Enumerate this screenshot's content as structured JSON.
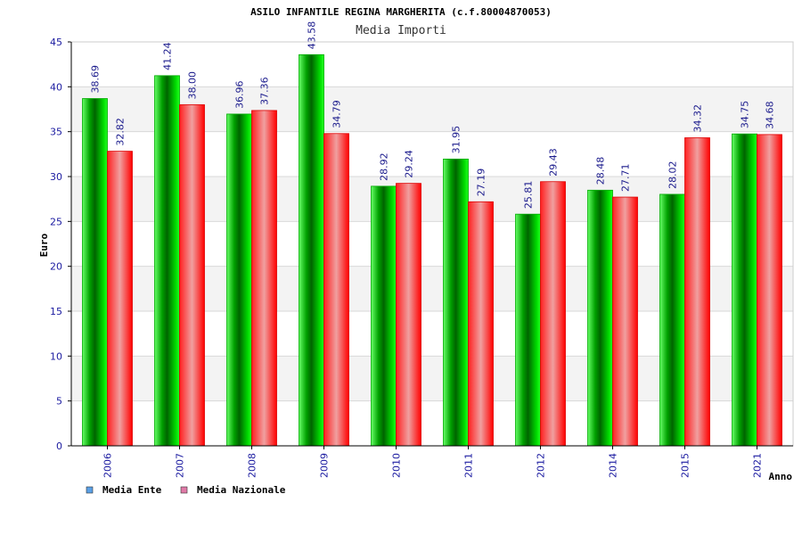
{
  "chart_data": {
    "type": "bar",
    "title": "ASILO INFANTILE REGINA MARGHERITA (c.f.80004870053)",
    "subtitle": "Media Importi",
    "xlabel": "Anno",
    "ylabel": "Euro",
    "ylim": [
      0,
      45
    ],
    "yticks": [
      0,
      5,
      10,
      15,
      20,
      25,
      30,
      35,
      40,
      45
    ],
    "grid": true,
    "legend_position": "bottom-left",
    "categories": [
      "2006",
      "2007",
      "2008",
      "2009",
      "2010",
      "2011",
      "2012",
      "2014",
      "2015",
      "2021"
    ],
    "series": [
      {
        "name": "Media Ente",
        "color": "#00c800",
        "legend_color": "#5aa0e6",
        "values": [
          38.69,
          41.24,
          36.96,
          43.58,
          28.92,
          31.95,
          25.81,
          28.48,
          28.02,
          34.75
        ],
        "labels": [
          "38.69",
          "41.24",
          "36.96",
          "43.58",
          "28.92",
          "31.95",
          "25.81",
          "28.48",
          "28.02",
          "34.75"
        ]
      },
      {
        "name": "Media Nazionale",
        "color": "#ff0000",
        "legend_color": "#e07aa8",
        "values": [
          32.82,
          38.0,
          37.36,
          34.79,
          29.24,
          27.19,
          29.43,
          27.71,
          34.32,
          34.68
        ],
        "labels": [
          "32.82",
          "38.00",
          "37.36",
          "34.79",
          "29.24",
          "27.19",
          "29.43",
          "27.71",
          "34.32",
          "34.68"
        ]
      }
    ]
  }
}
